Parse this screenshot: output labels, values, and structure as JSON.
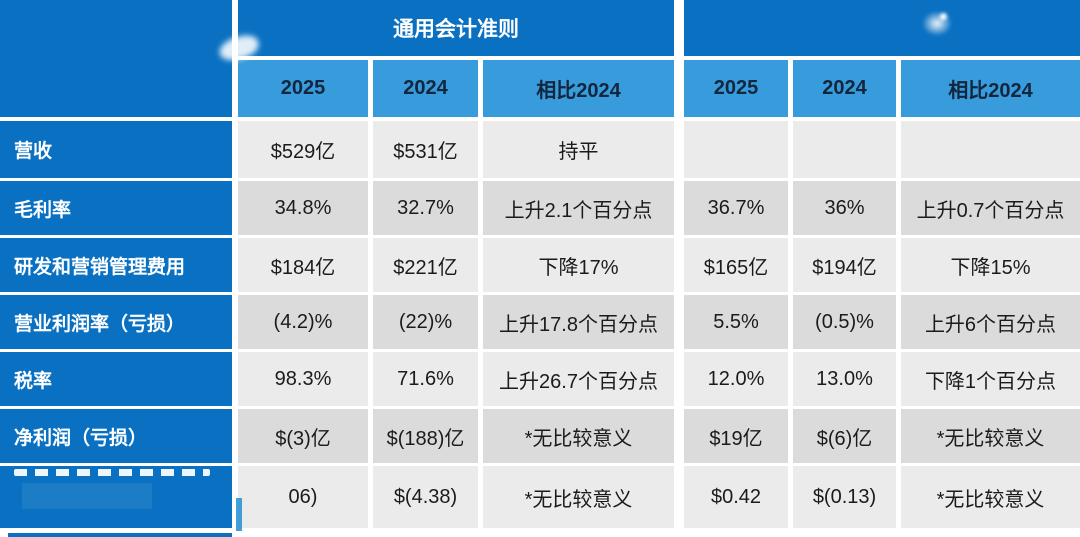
{
  "colors": {
    "brand_blue": "#0a71c2",
    "subheader_blue": "#389bdc",
    "row_light": "#ebebeb",
    "row_dark": "#dbdbdb",
    "header_text": "#ffffff",
    "subheader_text": "#12263e",
    "cell_text": "#1b1b1b"
  },
  "chart_data": {
    "type": "table",
    "title": "",
    "group_headers": [
      "通用会计准则",
      ""
    ],
    "columns": [
      "2025",
      "2024",
      "相比2024",
      "2025",
      "2024",
      "相比2024"
    ],
    "rows": [
      {
        "label": "营收",
        "cells": [
          "$529亿",
          "$531亿",
          "持平",
          "",
          "",
          ""
        ]
      },
      {
        "label": "毛利率",
        "cells": [
          "34.8%",
          "32.7%",
          "上升2.1个百分点",
          "36.7%",
          "36%",
          "上升0.7个百分点"
        ]
      },
      {
        "label": "研发和营销管理费用",
        "cells": [
          "$184亿",
          "$221亿",
          "下降17%",
          "$165亿",
          "$194亿",
          "下降15%"
        ]
      },
      {
        "label": "营业利润率（亏损）",
        "cells": [
          "(4.2)%",
          "(22)%",
          "上升17.8个百分点",
          "5.5%",
          "(0.5)%",
          "上升6个百分点"
        ]
      },
      {
        "label": "税率",
        "cells": [
          "98.3%",
          "71.6%",
          "上升26.7个百分点",
          "12.0%",
          "13.0%",
          "下降1个百分点"
        ]
      },
      {
        "label": "净利润（亏损）",
        "cells": [
          "$(3)亿",
          "$(188)亿",
          "*无比较意义",
          "$19亿",
          "$(6)亿",
          "*无比较意义"
        ]
      },
      {
        "label": "",
        "cells": [
          "06)",
          "$(4.38)",
          "*无比较意义",
          "$0.42",
          "$(0.13)",
          "*无比较意义"
        ]
      }
    ]
  }
}
